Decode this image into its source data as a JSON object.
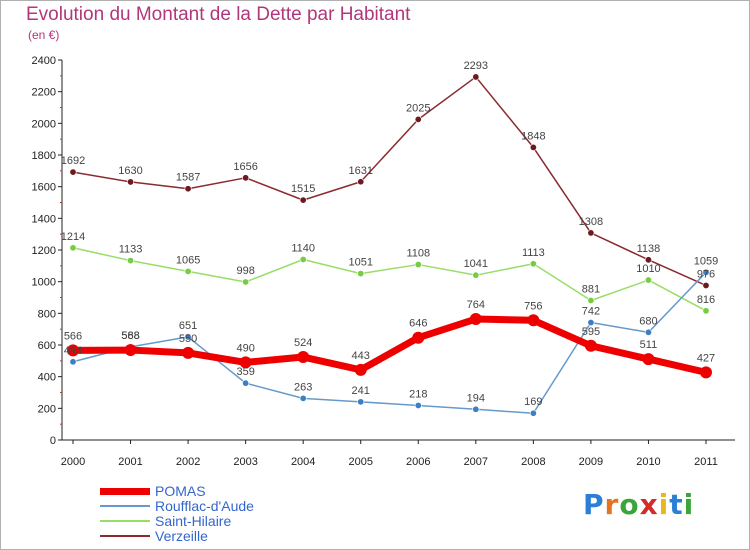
{
  "header": {
    "title": "Evolution du Montant de la Dette par Habitant",
    "subtitle": "(en €)"
  },
  "logo": {
    "text": "Proxiti",
    "colors": [
      "#2b7fd4",
      "#e8731f",
      "#3aa63a",
      "#d42b2b",
      "#e8b71f",
      "#2b7fd4",
      "#3aa63a"
    ]
  },
  "chart_data": {
    "type": "line",
    "x": [
      "2000",
      "2001",
      "2002",
      "2003",
      "2004",
      "2005",
      "2006",
      "2007",
      "2008",
      "2009",
      "2010",
      "2011"
    ],
    "ylim": [
      0,
      2400
    ],
    "yticks": [
      0,
      200,
      400,
      600,
      800,
      1000,
      1200,
      1400,
      1600,
      1800,
      2000,
      2200,
      2400
    ],
    "grid": false,
    "legend_position": "bottom-left",
    "series": [
      {
        "name": "Verzeille",
        "color": "#8b2a2f",
        "marker_color": "#6b1a1f",
        "line_width": 1.5,
        "values": [
          1692,
          1630,
          1587,
          1656,
          1515,
          1631,
          2025,
          2293,
          1848,
          1308,
          1138,
          976
        ],
        "labels": [
          "1692",
          "1630",
          "1587",
          "1656",
          "1515",
          "1631",
          "2025",
          "2293",
          "1848",
          "1308",
          "1138",
          "976"
        ]
      },
      {
        "name": "Saint-Hilaire",
        "color": "#99dd66",
        "marker_color": "#77cc44",
        "line_width": 1.5,
        "values": [
          1214,
          1133,
          1065,
          998,
          1140,
          1051,
          1108,
          1041,
          1113,
          881,
          1010,
          816
        ],
        "labels": [
          "1214",
          "1133",
          "1065",
          "998",
          "1140",
          "1051",
          "1108",
          "1041",
          "1113",
          "881",
          "1010",
          "816"
        ]
      },
      {
        "name": "Roufflac-d'Aude",
        "color": "#6699cc",
        "marker_color": "#3d7fc4",
        "line_width": 1.5,
        "values": [
          494,
          588,
          651,
          359,
          263,
          241,
          218,
          194,
          169,
          742,
          680,
          1059
        ],
        "labels": [
          "494",
          "588",
          "651",
          "359",
          "263",
          "241",
          "218",
          "194",
          "169",
          "742",
          "680",
          "1059"
        ]
      },
      {
        "name": "POMAS",
        "color": "#ee0000",
        "marker_color": "#ee0000",
        "line_width": 7,
        "values": [
          566,
          568,
          550,
          490,
          524,
          443,
          646,
          764,
          756,
          595,
          511,
          427
        ],
        "labels": [
          "566",
          "568",
          "550",
          "490",
          "524",
          "443",
          "646",
          "764",
          "756",
          "595",
          "511",
          "427"
        ]
      }
    ]
  },
  "legend": {
    "items": [
      {
        "name": "POMAS",
        "color": "#ee0000",
        "thickness": 7
      },
      {
        "name": "Roufflac-d'Aude",
        "color": "#6699cc",
        "thickness": 2
      },
      {
        "name": "Saint-Hilaire",
        "color": "#99dd66",
        "thickness": 2
      },
      {
        "name": "Verzeille",
        "color": "#8b2a2f",
        "thickness": 2
      }
    ]
  }
}
